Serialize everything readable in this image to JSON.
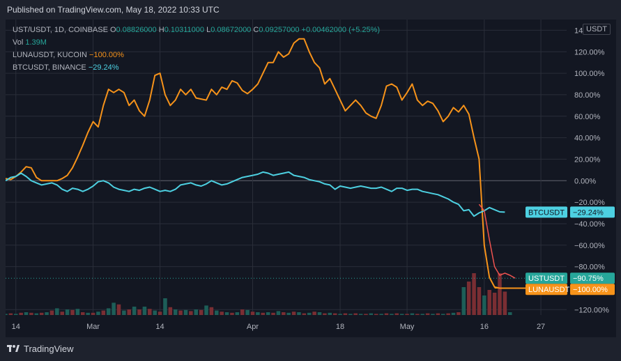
{
  "header": {
    "publish_text": "Published on TradingView.com, May 18, 2022 10:33 UTC"
  },
  "legend": {
    "main": {
      "symbol": "UST/USDT, 1D, COINBASE",
      "o_label": "O",
      "o": "0.08826000",
      "h_label": "H",
      "h": "0.10311000",
      "l_label": "L",
      "l": "0.08672000",
      "c_label": "C",
      "c": "0.09257000",
      "change": "+0.00462000 (+5.25%)"
    },
    "vol": {
      "label": "Vol",
      "value": "1.39M"
    },
    "luna": {
      "label": "LUNAUSDT, KUCOIN",
      "value": "−100.00%"
    },
    "btc": {
      "label": "BTCUSDT, BINANCE",
      "value": "−29.24%"
    }
  },
  "currency_badge": "USDT",
  "footer": {
    "logo_text": "TradingView"
  },
  "colors": {
    "background": "#131722",
    "grid": "#2a2e39",
    "text": "#b2b5be",
    "luna": "#f7931a",
    "btc": "#4dd0e1",
    "up": "#26a69a",
    "down": "#ef5350",
    "vol_up": "#1d5e58",
    "vol_down": "#7a2e33"
  },
  "chart_data": {
    "type": "line",
    "title": "UST/USDT, 1D, COINBASE",
    "y_unit": "percent change",
    "ylim": [
      -125,
      150
    ],
    "y_ticks": [
      140,
      120,
      100,
      80,
      60,
      40,
      20,
      0,
      -20,
      -40,
      -60,
      -80,
      -120
    ],
    "y_tick_labels": [
      "140.00%",
      "120.00%",
      "100.00%",
      "80.00%",
      "60.00%",
      "40.00%",
      "20.00%",
      "0.00%",
      "−20.00%",
      "−40.00%",
      "−60.00%",
      "−80.00%",
      "−120.00%"
    ],
    "x_ticks": [
      {
        "label": "14",
        "day": 2
      },
      {
        "label": "Mar",
        "day": 17
      },
      {
        "label": "14",
        "day": 30
      },
      {
        "label": "Apr",
        "day": 48
      },
      {
        "label": "18",
        "day": 65
      },
      {
        "label": "May",
        "day": 78
      },
      {
        "label": "16",
        "day": 93
      },
      {
        "label": "27",
        "day": 104
      }
    ],
    "x_range_days": [
      0,
      109
    ],
    "series": [
      {
        "name": "LUNAUSDT",
        "color": "#f7931a",
        "last_label": "LUNAUSDT",
        "last_value": "−100.00%",
        "values": [
          2,
          1,
          4,
          8,
          13,
          12,
          3,
          0,
          0,
          0,
          0,
          2,
          5,
          12,
          22,
          33,
          45,
          55,
          50,
          70,
          85,
          82,
          85,
          82,
          70,
          75,
          65,
          60,
          75,
          98,
          100,
          80,
          70,
          75,
          85,
          80,
          85,
          77,
          76,
          75,
          85,
          80,
          87,
          85,
          93,
          91,
          84,
          81,
          85,
          90,
          100,
          110,
          110,
          120,
          115,
          118,
          128,
          132,
          132,
          120,
          110,
          105,
          90,
          95,
          85,
          75,
          65,
          70,
          75,
          70,
          63,
          60,
          58,
          70,
          88,
          90,
          87,
          75,
          82,
          90,
          75,
          70,
          74,
          72,
          65,
          55,
          60,
          68,
          64,
          70,
          62,
          40,
          20,
          -60,
          -90,
          -99,
          -100,
          -100,
          -100,
          -100,
          -100,
          -100,
          -100,
          -100,
          -100,
          -100,
          -100
        ]
      },
      {
        "name": "BTCUSDT",
        "color": "#4dd0e1",
        "last_label": "BTCUSDT",
        "last_value": "−29.24%",
        "values": [
          0,
          3,
          4,
          7,
          4,
          0,
          -2,
          -4,
          -3,
          -2,
          -4,
          -8,
          -10,
          -7,
          -8,
          -10,
          -8,
          -5,
          -1,
          0,
          -2,
          -6,
          -8,
          -9,
          -10,
          -8,
          -9,
          -7,
          -6,
          -8,
          -10,
          -9,
          -10,
          -8,
          -4,
          -3,
          -2,
          -4,
          -5,
          -3,
          0,
          -2,
          -4,
          -3,
          -1,
          1,
          3,
          4,
          5,
          6,
          8,
          7,
          5,
          6,
          7,
          8,
          5,
          4,
          3,
          1,
          0,
          -1,
          -3,
          -4,
          -8,
          -5,
          -6,
          -7,
          -6,
          -5,
          -6,
          -7,
          -7,
          -6,
          -8,
          -10,
          -7,
          -7,
          -9,
          -8,
          -8,
          -10,
          -11,
          -12,
          -13,
          -15,
          -17,
          -20,
          -22,
          -28,
          -27,
          -33,
          -30,
          -28,
          -25,
          -27,
          -29,
          -29.24
        ]
      },
      {
        "name": "USTUSDT",
        "color": "#ef5350",
        "last_label": "USTUSDT",
        "last_value": "−90.75%",
        "start_day": 92,
        "values": [
          -22,
          -28,
          -55,
          -80,
          -88,
          -86,
          -88,
          -90.75
        ]
      }
    ],
    "volume": {
      "label": "Vol",
      "last_value": "1.39M",
      "bars": [
        {
          "v": 2,
          "up": true
        },
        {
          "v": 3,
          "up": false
        },
        {
          "v": 2,
          "up": true
        },
        {
          "v": 4,
          "up": false
        },
        {
          "v": 5,
          "up": true
        },
        {
          "v": 4,
          "up": false
        },
        {
          "v": 3,
          "up": true
        },
        {
          "v": 4,
          "up": false
        },
        {
          "v": 5,
          "up": true
        },
        {
          "v": 8,
          "up": false
        },
        {
          "v": 12,
          "up": true
        },
        {
          "v": 6,
          "up": false
        },
        {
          "v": 10,
          "up": true
        },
        {
          "v": 9,
          "up": false
        },
        {
          "v": 11,
          "up": true
        },
        {
          "v": 5,
          "up": false
        },
        {
          "v": 4,
          "up": true
        },
        {
          "v": 4,
          "up": false
        },
        {
          "v": 6,
          "up": true
        },
        {
          "v": 8,
          "up": false
        },
        {
          "v": 12,
          "up": true
        },
        {
          "v": 22,
          "up": true
        },
        {
          "v": 19,
          "up": false
        },
        {
          "v": 8,
          "up": true
        },
        {
          "v": 10,
          "up": false
        },
        {
          "v": 15,
          "up": true
        },
        {
          "v": 10,
          "up": false
        },
        {
          "v": 15,
          "up": true
        },
        {
          "v": 11,
          "up": false
        },
        {
          "v": 8,
          "up": true
        },
        {
          "v": 6,
          "up": false
        },
        {
          "v": 30,
          "up": true
        },
        {
          "v": 14,
          "up": false
        },
        {
          "v": 10,
          "up": true
        },
        {
          "v": 8,
          "up": false
        },
        {
          "v": 9,
          "up": true
        },
        {
          "v": 7,
          "up": false
        },
        {
          "v": 10,
          "up": true
        },
        {
          "v": 9,
          "up": false
        },
        {
          "v": 17,
          "up": true
        },
        {
          "v": 14,
          "up": false
        },
        {
          "v": 8,
          "up": true
        },
        {
          "v": 6,
          "up": false
        },
        {
          "v": 5,
          "up": true
        },
        {
          "v": 4,
          "up": false
        },
        {
          "v": 5,
          "up": true
        },
        {
          "v": 10,
          "up": false
        },
        {
          "v": 9,
          "up": true
        },
        {
          "v": 6,
          "up": false
        },
        {
          "v": 5,
          "up": true
        },
        {
          "v": 4,
          "up": false
        },
        {
          "v": 5,
          "up": true
        },
        {
          "v": 4,
          "up": false
        },
        {
          "v": 7,
          "up": true
        },
        {
          "v": 5,
          "up": false
        },
        {
          "v": 4,
          "up": true
        },
        {
          "v": 6,
          "up": false
        },
        {
          "v": 5,
          "up": true
        },
        {
          "v": 3,
          "up": false
        },
        {
          "v": 4,
          "up": true
        },
        {
          "v": 6,
          "up": false
        },
        {
          "v": 5,
          "up": true
        },
        {
          "v": 3,
          "up": false
        },
        {
          "v": 4,
          "up": true
        },
        {
          "v": 3,
          "up": false
        },
        {
          "v": 2,
          "up": true
        },
        {
          "v": 3,
          "up": false
        },
        {
          "v": 2,
          "up": true
        },
        {
          "v": 3,
          "up": false
        },
        {
          "v": 2,
          "up": true
        },
        {
          "v": 2,
          "up": false
        },
        {
          "v": 3,
          "up": true
        },
        {
          "v": 2,
          "up": false
        },
        {
          "v": 2,
          "up": true
        },
        {
          "v": 3,
          "up": false
        },
        {
          "v": 2,
          "up": true
        },
        {
          "v": 3,
          "up": false
        },
        {
          "v": 2,
          "up": true
        },
        {
          "v": 2,
          "up": false
        },
        {
          "v": 3,
          "up": true
        },
        {
          "v": 2,
          "up": false
        },
        {
          "v": 2,
          "up": true
        },
        {
          "v": 3,
          "up": false
        },
        {
          "v": 2,
          "up": true
        },
        {
          "v": 3,
          "up": false
        },
        {
          "v": 2,
          "up": true
        },
        {
          "v": 3,
          "up": false
        },
        {
          "v": 4,
          "up": true
        },
        {
          "v": 5,
          "up": false
        },
        {
          "v": 50,
          "up": true
        },
        {
          "v": 60,
          "up": false
        },
        {
          "v": 75,
          "up": false
        },
        {
          "v": 50,
          "up": false
        },
        {
          "v": 35,
          "up": true
        },
        {
          "v": 45,
          "up": false
        },
        {
          "v": 40,
          "up": false
        },
        {
          "v": 75,
          "up": false
        },
        {
          "v": 42,
          "up": false
        },
        {
          "v": 5,
          "up": true
        }
      ]
    }
  }
}
